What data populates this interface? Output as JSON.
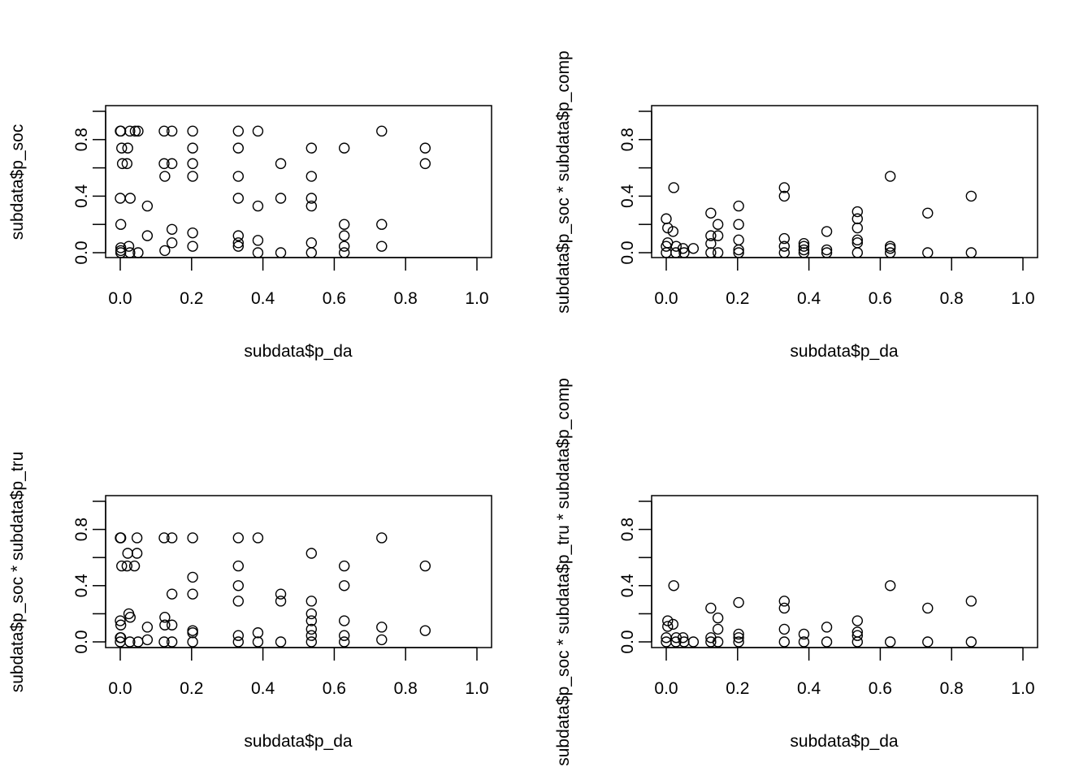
{
  "chart_data": [
    {
      "type": "scatter",
      "xlabel": "subdata$p_da",
      "ylabel": "subdata$p_soc",
      "xlim": [
        0,
        1
      ],
      "ylim": [
        0,
        1
      ],
      "xticks": [
        "0.0",
        "0.2",
        "0.4",
        "0.6",
        "0.8",
        "1.0"
      ],
      "yticks": [
        "0.0",
        "0.4",
        "0.8"
      ],
      "points": [
        [
          0,
          0.86
        ],
        [
          0.0015,
          0.86
        ],
        [
          0.027,
          0.86
        ],
        [
          0.042,
          0.86
        ],
        [
          0.05,
          0.86
        ],
        [
          0.123,
          0.86
        ],
        [
          0.145,
          0.86
        ],
        [
          0.203,
          0.86
        ],
        [
          0.331,
          0.86
        ],
        [
          0.386,
          0.86
        ],
        [
          0.733,
          0.86
        ],
        [
          0.004,
          0.74
        ],
        [
          0.021,
          0.74
        ],
        [
          0.203,
          0.74
        ],
        [
          0.331,
          0.74
        ],
        [
          0.536,
          0.74
        ],
        [
          0.628,
          0.74
        ],
        [
          0.855,
          0.74
        ],
        [
          0.006,
          0.63
        ],
        [
          0.019,
          0.63
        ],
        [
          0.123,
          0.63
        ],
        [
          0.145,
          0.63
        ],
        [
          0.203,
          0.63
        ],
        [
          0.45,
          0.63
        ],
        [
          0.855,
          0.63
        ],
        [
          0.125,
          0.54
        ],
        [
          0.203,
          0.54
        ],
        [
          0.331,
          0.54
        ],
        [
          0.536,
          0.54
        ],
        [
          0,
          0.385
        ],
        [
          0.028,
          0.385
        ],
        [
          0.331,
          0.385
        ],
        [
          0.45,
          0.385
        ],
        [
          0.536,
          0.385
        ],
        [
          0.076,
          0.33
        ],
        [
          0.386,
          0.33
        ],
        [
          0.536,
          0.33
        ],
        [
          0.0015,
          0.2
        ],
        [
          0.628,
          0.2
        ],
        [
          0.733,
          0.2
        ],
        [
          0.145,
          0.165
        ],
        [
          0.203,
          0.14
        ],
        [
          0.076,
          0.12
        ],
        [
          0.331,
          0.12
        ],
        [
          0.628,
          0.12
        ],
        [
          0.386,
          0.087
        ],
        [
          0.145,
          0.07
        ],
        [
          0.331,
          0.07
        ],
        [
          0.536,
          0.07
        ],
        [
          0.024,
          0.045
        ],
        [
          0.203,
          0.045
        ],
        [
          0.331,
          0.045
        ],
        [
          0.628,
          0.045
        ],
        [
          0.733,
          0.045
        ],
        [
          0.0015,
          0.035
        ],
        [
          0.125,
          0.015
        ],
        [
          0.0015,
          0.015
        ],
        [
          0.0015,
          0
        ],
        [
          0.027,
          0
        ],
        [
          0.05,
          0
        ],
        [
          0.386,
          0
        ],
        [
          0.45,
          0
        ],
        [
          0.536,
          0
        ],
        [
          0.628,
          0
        ]
      ]
    },
    {
      "type": "scatter",
      "xlabel": "subdata$p_da",
      "ylabel": "subdata$p_soc * subdata$p_comp",
      "xlim": [
        0,
        1
      ],
      "ylim": [
        0,
        1
      ],
      "xticks": [
        "0.0",
        "0.2",
        "0.4",
        "0.6",
        "0.8",
        "1.0"
      ],
      "yticks": [
        "0.0",
        "0.4",
        "0.8"
      ],
      "points": [
        [
          0.021,
          0.46
        ],
        [
          0.628,
          0.54
        ],
        [
          0.331,
          0.46
        ],
        [
          0.331,
          0.4
        ],
        [
          0.855,
          0.4
        ],
        [
          0.203,
          0.33
        ],
        [
          0.125,
          0.28
        ],
        [
          0.733,
          0.28
        ],
        [
          0.536,
          0.29
        ],
        [
          0,
          0.24
        ],
        [
          0.536,
          0.24
        ],
        [
          0.145,
          0.2
        ],
        [
          0.203,
          0.2
        ],
        [
          0.004,
          0.175
        ],
        [
          0.536,
          0.175
        ],
        [
          0.019,
          0.15
        ],
        [
          0.45,
          0.15
        ],
        [
          0.125,
          0.12
        ],
        [
          0.145,
          0.12
        ],
        [
          0.331,
          0.1
        ],
        [
          0.203,
          0.09
        ],
        [
          0.536,
          0.09
        ],
        [
          0.004,
          0.07
        ],
        [
          0.536,
          0.07
        ],
        [
          0.125,
          0.065
        ],
        [
          0.386,
          0.065
        ],
        [
          0,
          0.045
        ],
        [
          0.028,
          0.045
        ],
        [
          0.331,
          0.045
        ],
        [
          0.386,
          0.045
        ],
        [
          0.628,
          0.045
        ],
        [
          0.047,
          0.03
        ],
        [
          0.076,
          0.03
        ],
        [
          0.628,
          0.03
        ],
        [
          0.203,
          0.02
        ],
        [
          0.45,
          0.02
        ],
        [
          0.386,
          0.02
        ],
        [
          0,
          0
        ],
        [
          0.027,
          0
        ],
        [
          0.05,
          0
        ],
        [
          0.125,
          0
        ],
        [
          0.145,
          0
        ],
        [
          0.203,
          0
        ],
        [
          0.331,
          0
        ],
        [
          0.386,
          0
        ],
        [
          0.45,
          0
        ],
        [
          0.536,
          0
        ],
        [
          0.628,
          0
        ],
        [
          0.733,
          0
        ],
        [
          0.855,
          0
        ]
      ]
    },
    {
      "type": "scatter",
      "xlabel": "subdata$p_da",
      "ylabel": "subdata$p_soc * subdata$p_tru",
      "xlim": [
        0,
        1
      ],
      "ylim": [
        0,
        1
      ],
      "xticks": [
        "0.0",
        "0.2",
        "0.4",
        "0.6",
        "0.8",
        "1.0"
      ],
      "yticks": [
        "0.0",
        "0.4",
        "0.8"
      ],
      "points": [
        [
          0,
          0.74
        ],
        [
          0.0015,
          0.74
        ],
        [
          0.047,
          0.74
        ],
        [
          0.123,
          0.74
        ],
        [
          0.145,
          0.74
        ],
        [
          0.203,
          0.74
        ],
        [
          0.331,
          0.74
        ],
        [
          0.386,
          0.74
        ],
        [
          0.733,
          0.74
        ],
        [
          0.021,
          0.63
        ],
        [
          0.047,
          0.63
        ],
        [
          0.536,
          0.63
        ],
        [
          0.004,
          0.54
        ],
        [
          0.019,
          0.54
        ],
        [
          0.04,
          0.54
        ],
        [
          0.331,
          0.54
        ],
        [
          0.628,
          0.54
        ],
        [
          0.855,
          0.54
        ],
        [
          0.203,
          0.46
        ],
        [
          0.331,
          0.4
        ],
        [
          0.628,
          0.4
        ],
        [
          0.145,
          0.34
        ],
        [
          0.203,
          0.34
        ],
        [
          0.45,
          0.34
        ],
        [
          0.331,
          0.29
        ],
        [
          0.45,
          0.29
        ],
        [
          0.536,
          0.29
        ],
        [
          0.024,
          0.2
        ],
        [
          0.536,
          0.2
        ],
        [
          0.028,
          0.175
        ],
        [
          0.125,
          0.175
        ],
        [
          0,
          0.15
        ],
        [
          0.536,
          0.15
        ],
        [
          0.628,
          0.15
        ],
        [
          0.0015,
          0.12
        ],
        [
          0.125,
          0.12
        ],
        [
          0.145,
          0.12
        ],
        [
          0.076,
          0.105
        ],
        [
          0.733,
          0.105
        ],
        [
          0.536,
          0.09
        ],
        [
          0.203,
          0.08
        ],
        [
          0.855,
          0.08
        ],
        [
          0.386,
          0.065
        ],
        [
          0.203,
          0.065
        ],
        [
          0.331,
          0.045
        ],
        [
          0.536,
          0.045
        ],
        [
          0.628,
          0.045
        ],
        [
          0,
          0.03
        ],
        [
          0.0015,
          0.03
        ],
        [
          0.076,
          0.015
        ],
        [
          0.733,
          0.015
        ],
        [
          0,
          0
        ],
        [
          0.027,
          0
        ],
        [
          0.05,
          0
        ],
        [
          0.123,
          0
        ],
        [
          0.145,
          0
        ],
        [
          0.203,
          0
        ],
        [
          0.331,
          0
        ],
        [
          0.386,
          0
        ],
        [
          0.45,
          0
        ],
        [
          0.536,
          0
        ],
        [
          0.628,
          0
        ]
      ]
    },
    {
      "type": "scatter",
      "xlabel": "subdata$p_da",
      "ylabel": "subdata$p_soc * subdata$p_tru * subdata$p_comp",
      "xlim": [
        0,
        1
      ],
      "ylim": [
        0,
        1
      ],
      "xticks": [
        "0.0",
        "0.2",
        "0.4",
        "0.6",
        "0.8",
        "1.0"
      ],
      "yticks": [
        "0.0",
        "0.4",
        "0.8"
      ],
      "points": [
        [
          0.021,
          0.4
        ],
        [
          0.628,
          0.4
        ],
        [
          0.331,
          0.29
        ],
        [
          0.855,
          0.29
        ],
        [
          0.203,
          0.28
        ],
        [
          0.125,
          0.24
        ],
        [
          0.733,
          0.24
        ],
        [
          0.331,
          0.24
        ],
        [
          0.145,
          0.17
        ],
        [
          0.004,
          0.15
        ],
        [
          0.536,
          0.15
        ],
        [
          0.019,
          0.125
        ],
        [
          0.004,
          0.11
        ],
        [
          0.45,
          0.105
        ],
        [
          0.145,
          0.09
        ],
        [
          0.331,
          0.09
        ],
        [
          0.536,
          0.07
        ],
        [
          0.203,
          0.055
        ],
        [
          0.386,
          0.055
        ],
        [
          0.536,
          0.045
        ],
        [
          0,
          0.03
        ],
        [
          0.125,
          0.03
        ],
        [
          0.047,
          0.03
        ],
        [
          0.028,
          0.03
        ],
        [
          0.203,
          0.03
        ],
        [
          0,
          0
        ],
        [
          0.027,
          0
        ],
        [
          0.05,
          0
        ],
        [
          0.076,
          0
        ],
        [
          0.125,
          0
        ],
        [
          0.145,
          0
        ],
        [
          0.203,
          0
        ],
        [
          0.331,
          0
        ],
        [
          0.386,
          0
        ],
        [
          0.45,
          0
        ],
        [
          0.536,
          0
        ],
        [
          0.628,
          0
        ],
        [
          0.733,
          0
        ],
        [
          0.855,
          0
        ]
      ]
    }
  ]
}
